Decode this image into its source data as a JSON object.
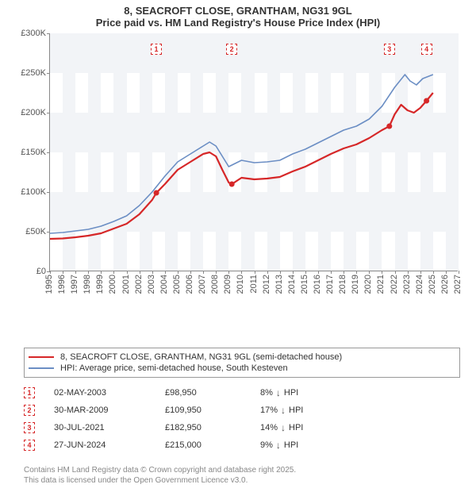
{
  "title": {
    "line1": "8, SEACROFT CLOSE, GRANTHAM, NG31 9GL",
    "line2": "Price paid vs. HM Land Registry's House Price Index (HPI)"
  },
  "chart": {
    "type": "line",
    "background_color": "#ffffff",
    "band_color": "#f2f4f7",
    "axis_color": "#888888",
    "x": {
      "min": 1995,
      "max": 2027,
      "step": 1,
      "label_fontsize": 11,
      "label_color": "#555555",
      "rotation": -90
    },
    "y": {
      "min": 0,
      "max": 300000,
      "step": 50000,
      "tick_labels": [
        "£0",
        "£50K",
        "£100K",
        "£150K",
        "£200K",
        "£250K",
        "£300K"
      ],
      "label_fontsize": 11,
      "label_color": "#555555"
    },
    "series": [
      {
        "name": "price_paid",
        "label": "8, SEACROFT CLOSE, GRANTHAM, NG31 9GL (semi-detached house)",
        "color": "#d62728",
        "line_width": 2.2,
        "points": [
          [
            1995.0,
            41000
          ],
          [
            1996.0,
            41500
          ],
          [
            1997.0,
            43000
          ],
          [
            1998.0,
            45000
          ],
          [
            1999.0,
            48000
          ],
          [
            2000.0,
            54000
          ],
          [
            2001.0,
            60000
          ],
          [
            2002.0,
            72000
          ],
          [
            2003.0,
            90000
          ],
          [
            2003.33,
            98950
          ],
          [
            2004.0,
            110000
          ],
          [
            2005.0,
            128000
          ],
          [
            2006.0,
            138000
          ],
          [
            2007.0,
            148000
          ],
          [
            2007.5,
            150000
          ],
          [
            2008.0,
            145000
          ],
          [
            2008.5,
            128000
          ],
          [
            2009.0,
            112000
          ],
          [
            2009.24,
            109950
          ],
          [
            2010.0,
            118000
          ],
          [
            2011.0,
            116000
          ],
          [
            2012.0,
            117000
          ],
          [
            2013.0,
            119000
          ],
          [
            2014.0,
            126000
          ],
          [
            2015.0,
            132000
          ],
          [
            2016.0,
            140000
          ],
          [
            2017.0,
            148000
          ],
          [
            2018.0,
            155000
          ],
          [
            2019.0,
            160000
          ],
          [
            2020.0,
            168000
          ],
          [
            2021.0,
            178000
          ],
          [
            2021.58,
            182950
          ],
          [
            2022.0,
            198000
          ],
          [
            2022.5,
            210000
          ],
          [
            2023.0,
            203000
          ],
          [
            2023.5,
            200000
          ],
          [
            2024.0,
            206000
          ],
          [
            2024.49,
            215000
          ],
          [
            2025.0,
            225000
          ]
        ],
        "dots": [
          {
            "x": 2003.33,
            "y": 98950
          },
          {
            "x": 2009.24,
            "y": 109950
          },
          {
            "x": 2021.58,
            "y": 182950
          },
          {
            "x": 2024.49,
            "y": 215000
          }
        ]
      },
      {
        "name": "hpi",
        "label": "HPI: Average price, semi-detached house, South Kesteven",
        "color": "#6b8ec4",
        "line_width": 1.6,
        "points": [
          [
            1995.0,
            48000
          ],
          [
            1996.0,
            49000
          ],
          [
            1997.0,
            51000
          ],
          [
            1998.0,
            53000
          ],
          [
            1999.0,
            57000
          ],
          [
            2000.0,
            63000
          ],
          [
            2001.0,
            70000
          ],
          [
            2002.0,
            83000
          ],
          [
            2003.0,
            100000
          ],
          [
            2004.0,
            120000
          ],
          [
            2005.0,
            138000
          ],
          [
            2006.0,
            148000
          ],
          [
            2007.0,
            158000
          ],
          [
            2007.5,
            163000
          ],
          [
            2008.0,
            158000
          ],
          [
            2008.5,
            145000
          ],
          [
            2009.0,
            132000
          ],
          [
            2010.0,
            140000
          ],
          [
            2011.0,
            137000
          ],
          [
            2012.0,
            138000
          ],
          [
            2013.0,
            140000
          ],
          [
            2014.0,
            148000
          ],
          [
            2015.0,
            154000
          ],
          [
            2016.0,
            162000
          ],
          [
            2017.0,
            170000
          ],
          [
            2018.0,
            178000
          ],
          [
            2019.0,
            183000
          ],
          [
            2020.0,
            192000
          ],
          [
            2021.0,
            208000
          ],
          [
            2022.0,
            232000
          ],
          [
            2022.8,
            248000
          ],
          [
            2023.2,
            240000
          ],
          [
            2023.7,
            235000
          ],
          [
            2024.2,
            243000
          ],
          [
            2025.0,
            248000
          ]
        ]
      }
    ],
    "sale_markers": [
      {
        "n": "1",
        "x": 2003.33,
        "y_box": 280000
      },
      {
        "n": "2",
        "x": 2009.24,
        "y_box": 280000
      },
      {
        "n": "3",
        "x": 2021.58,
        "y_box": 280000
      },
      {
        "n": "4",
        "x": 2024.49,
        "y_box": 280000
      }
    ],
    "marker_box": {
      "width": 14,
      "height": 14,
      "border_color": "#d62728",
      "text_color": "#d62728",
      "font_size": 9,
      "dashed": true
    }
  },
  "legend": {
    "border_color": "#999999",
    "items": [
      {
        "color": "#d62728",
        "width": 2.2,
        "label": "8, SEACROFT CLOSE, GRANTHAM, NG31 9GL (semi-detached house)"
      },
      {
        "color": "#6b8ec4",
        "width": 1.6,
        "label": "HPI: Average price, semi-detached house, South Kesteven"
      }
    ]
  },
  "transactions": {
    "columns": [
      "marker",
      "date",
      "price",
      "delta",
      "unit"
    ],
    "rows": [
      {
        "n": "1",
        "date": "02-MAY-2003",
        "price": "£98,950",
        "delta": "8%",
        "dir": "down",
        "unit": "HPI"
      },
      {
        "n": "2",
        "date": "30-MAR-2009",
        "price": "£109,950",
        "delta": "17%",
        "dir": "down",
        "unit": "HPI"
      },
      {
        "n": "3",
        "date": "30-JUL-2021",
        "price": "£182,950",
        "delta": "14%",
        "dir": "down",
        "unit": "HPI"
      },
      {
        "n": "4",
        "date": "27-JUN-2024",
        "price": "£215,000",
        "delta": "9%",
        "dir": "down",
        "unit": "HPI"
      }
    ],
    "arrow_down_glyph": "↓",
    "arrow_color": "#555555"
  },
  "footer": {
    "line1": "Contains HM Land Registry data © Crown copyright and database right 2025.",
    "line2": "This data is licensed under the Open Government Licence v3.0."
  }
}
